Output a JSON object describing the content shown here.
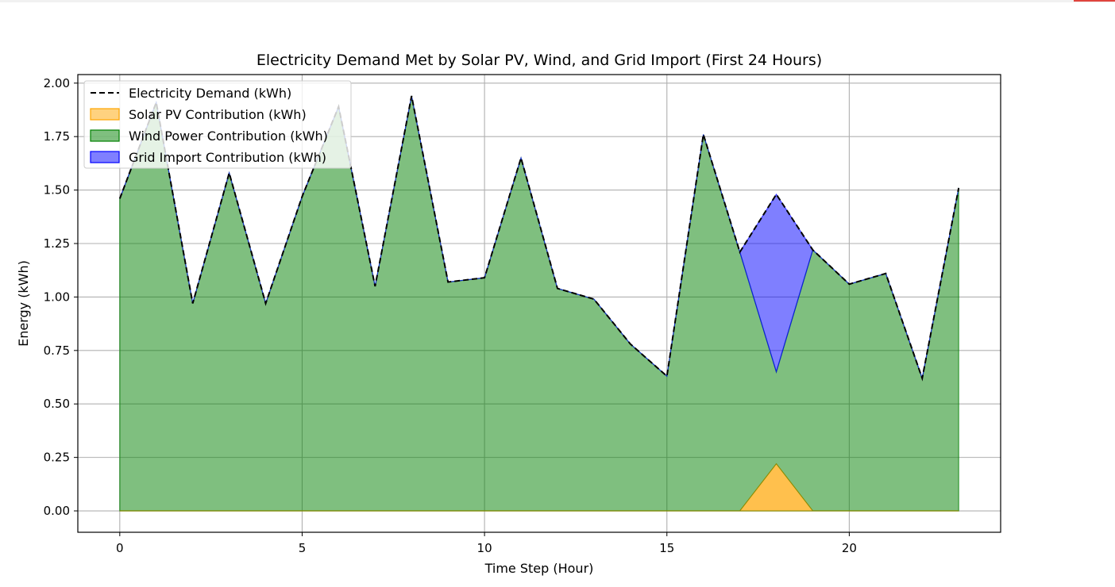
{
  "chart_data": {
    "type": "area",
    "title": "Electricity Demand Met by Solar PV, Wind, and Grid Import (First 24 Hours)",
    "xlabel": "Time Step (Hour)",
    "ylabel": "Energy (kWh)",
    "xlim": [
      -1.15,
      24.15
    ],
    "ylim": [
      -0.1,
      2.04
    ],
    "x_ticks": [
      0,
      5,
      10,
      15,
      20
    ],
    "y_ticks": [
      0.0,
      0.25,
      0.5,
      0.75,
      1.0,
      1.25,
      1.5,
      1.75,
      2.0
    ],
    "y_tick_labels": [
      "0.00",
      "0.25",
      "0.50",
      "0.75",
      "1.00",
      "1.25",
      "1.50",
      "1.75",
      "2.00"
    ],
    "grid": true,
    "legend_position": "upper-left",
    "x": [
      0,
      1,
      2,
      3,
      4,
      5,
      6,
      7,
      8,
      9,
      10,
      11,
      12,
      13,
      14,
      15,
      16,
      17,
      18,
      19,
      20,
      21,
      22,
      23
    ],
    "series": [
      {
        "name": "Electricity Demand (kWh)",
        "kind": "line",
        "style": "dashed",
        "color": "#000000",
        "values": [
          1.46,
          1.91,
          0.97,
          1.58,
          0.97,
          1.47,
          1.89,
          1.05,
          1.94,
          1.07,
          1.09,
          1.65,
          1.04,
          0.99,
          0.78,
          0.63,
          1.76,
          1.21,
          1.48,
          1.22,
          1.06,
          1.11,
          0.62,
          1.51
        ]
      },
      {
        "name": "Solar PV Contribution (kWh)",
        "kind": "fill",
        "color": "#ffa500",
        "values": [
          0,
          0,
          0,
          0,
          0,
          0,
          0,
          0,
          0,
          0,
          0,
          0,
          0,
          0,
          0,
          0,
          0,
          0,
          0.22,
          0,
          0,
          0,
          0,
          0
        ]
      },
      {
        "name": "Wind Power Contribution (kWh)",
        "kind": "fill",
        "color": "#008000",
        "values": [
          1.46,
          1.91,
          0.97,
          1.58,
          0.97,
          1.47,
          1.89,
          1.05,
          1.94,
          1.07,
          1.09,
          1.65,
          1.04,
          0.99,
          0.78,
          0.63,
          1.76,
          1.21,
          0.65,
          1.22,
          1.06,
          1.11,
          0.62,
          1.51
        ]
      },
      {
        "name": "Grid Import Contribution (kWh)",
        "kind": "fill",
        "color": "#0000ff",
        "values": [
          0,
          0,
          0,
          0,
          0,
          0,
          0,
          0,
          0,
          0,
          0,
          0,
          0,
          0,
          0,
          0,
          0,
          0,
          0.83,
          0,
          0,
          0,
          0,
          0
        ]
      }
    ]
  }
}
